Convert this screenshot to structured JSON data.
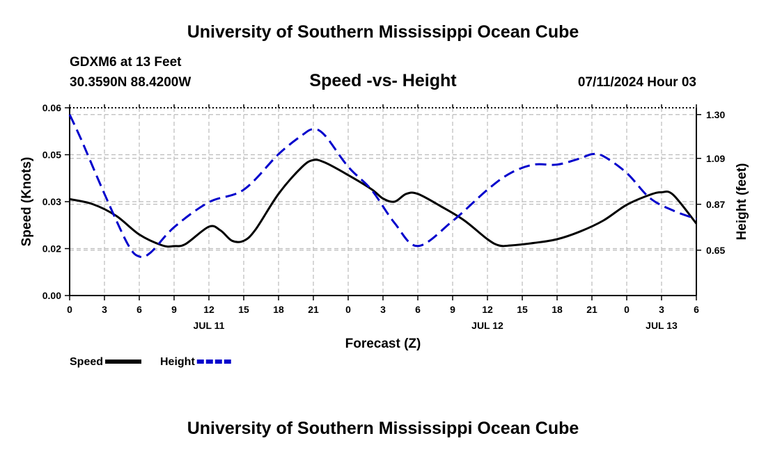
{
  "page": {
    "title_top": "University of Southern Mississippi Ocean Cube",
    "title_bottom": "University of Southern Mississippi Ocean Cube"
  },
  "header": {
    "station": "GDXM6 at 13 Feet",
    "location": "30.3590N  88.4200W",
    "subtitle": "Speed -vs- Height",
    "datetime": "07/11/2024 Hour 03"
  },
  "chart_data": {
    "type": "line",
    "title": "Speed -vs- Height",
    "xlabel": "Forecast (Z)",
    "ylabel": "Speed (Knots)",
    "y2label": "Height (feet)",
    "x_range_hours": [
      0,
      54
    ],
    "ylim": [
      0.0,
      0.06
    ],
    "y2lim": [
      0.4325,
      1.3325
    ],
    "x_ticks": [
      {
        "hour": 0,
        "label": "0"
      },
      {
        "hour": 3,
        "label": "3"
      },
      {
        "hour": 6,
        "label": "6"
      },
      {
        "hour": 9,
        "label": "9"
      },
      {
        "hour": 12,
        "label": "12"
      },
      {
        "hour": 15,
        "label": "15"
      },
      {
        "hour": 18,
        "label": "18"
      },
      {
        "hour": 21,
        "label": "21"
      },
      {
        "hour": 24,
        "label": "0"
      },
      {
        "hour": 27,
        "label": "3"
      },
      {
        "hour": 30,
        "label": "6"
      },
      {
        "hour": 33,
        "label": "9"
      },
      {
        "hour": 36,
        "label": "12"
      },
      {
        "hour": 39,
        "label": "15"
      },
      {
        "hour": 42,
        "label": "18"
      },
      {
        "hour": 45,
        "label": "21"
      },
      {
        "hour": 48,
        "label": "0"
      },
      {
        "hour": 51,
        "label": "3"
      },
      {
        "hour": 54,
        "label": "6"
      }
    ],
    "date_labels": [
      {
        "hour": 12,
        "label": "JUL 11"
      },
      {
        "hour": 36,
        "label": "JUL 12"
      },
      {
        "hour": 51,
        "label": "JUL 13"
      }
    ],
    "y_ticks": [
      {
        "value": 0.0,
        "label": "0.00"
      },
      {
        "value": 0.015,
        "label": "0.02"
      },
      {
        "value": 0.03,
        "label": "0.03"
      },
      {
        "value": 0.045,
        "label": "0.05"
      },
      {
        "value": 0.06,
        "label": "0.06"
      }
    ],
    "y2_ticks": [
      {
        "value": 0.65,
        "label": "0.65"
      },
      {
        "value": 0.87,
        "label": "0.87"
      },
      {
        "value": 1.09,
        "label": "1.09"
      },
      {
        "value": 1.3,
        "label": "1.30"
      }
    ],
    "series": [
      {
        "name": "Speed",
        "axis": "left",
        "color": "#000000",
        "style": "solid",
        "x": [
          0,
          2,
          4,
          6,
          8,
          9,
          10,
          12,
          13,
          14,
          15,
          16,
          18,
          20,
          21,
          22,
          24,
          26,
          27,
          28,
          29,
          30,
          32,
          34,
          36,
          37,
          38,
          40,
          42,
          44,
          46,
          48,
          50,
          51,
          52,
          54
        ],
        "values": [
          0.0308,
          0.0292,
          0.0255,
          0.0195,
          0.016,
          0.0158,
          0.0165,
          0.022,
          0.0208,
          0.0175,
          0.0175,
          0.021,
          0.0325,
          0.041,
          0.0433,
          0.0425,
          0.0385,
          0.034,
          0.031,
          0.03,
          0.0325,
          0.0325,
          0.0285,
          0.024,
          0.018,
          0.016,
          0.016,
          0.0168,
          0.018,
          0.0205,
          0.024,
          0.029,
          0.0322,
          0.033,
          0.0322,
          0.023
        ]
      },
      {
        "name": "Height",
        "axis": "right",
        "color": "#0000cc",
        "style": "dashed",
        "x": [
          0,
          1,
          3,
          5,
          6,
          7,
          9,
          12,
          15,
          18,
          20,
          21,
          22,
          24,
          26,
          28,
          30,
          33,
          36,
          38,
          40,
          42,
          44,
          45,
          46,
          48,
          50,
          52,
          54
        ],
        "values": [
          1.3,
          1.18,
          0.92,
          0.68,
          0.62,
          0.64,
          0.76,
          0.88,
          0.94,
          1.11,
          1.2,
          1.23,
          1.2,
          1.05,
          0.94,
          0.78,
          0.67,
          0.79,
          0.94,
          1.02,
          1.06,
          1.06,
          1.09,
          1.11,
          1.1,
          1.02,
          0.9,
          0.84,
          0.8
        ]
      }
    ],
    "legend": [
      {
        "label": "Speed",
        "color": "#000000",
        "style": "solid"
      },
      {
        "label": "Height",
        "color": "#0000cc",
        "style": "dashed"
      }
    ],
    "grid": true,
    "legend_position": "bottom-left"
  }
}
